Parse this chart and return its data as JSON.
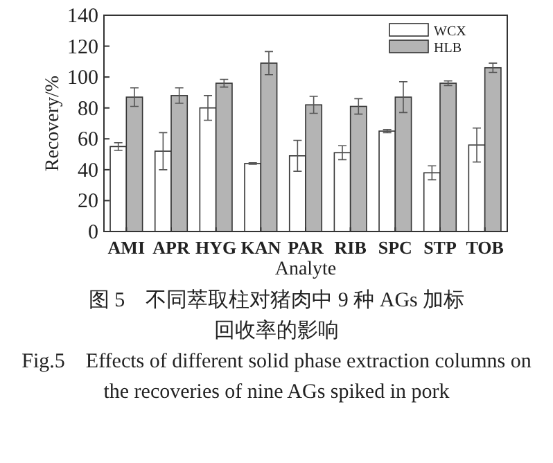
{
  "chart_data": {
    "type": "bar",
    "xlabel": "Analyte",
    "ylabel": "Recovery/%",
    "categories": [
      "AMI",
      "APR",
      "HYG",
      "KAN",
      "PAR",
      "RIB",
      "SPC",
      "STP",
      "TOB"
    ],
    "series": [
      {
        "name": "WCX",
        "color": "#ffffff",
        "values": [
          55,
          52,
          80,
          44,
          49,
          51,
          65,
          38,
          56
        ],
        "errors": [
          2.5,
          12,
          8,
          0.5,
          10,
          4.5,
          1,
          4.5,
          11
        ]
      },
      {
        "name": "HLB",
        "color": "#b4b4b4",
        "values": [
          87,
          88,
          96,
          109,
          82,
          81,
          87,
          96,
          106
        ],
        "errors": [
          6,
          5,
          2.5,
          7.5,
          5.5,
          5,
          10,
          1.5,
          3
        ]
      }
    ],
    "ylim": [
      0,
      140
    ],
    "yticks": [
      0,
      20,
      40,
      60,
      80,
      100,
      120,
      140
    ],
    "legend": "top right",
    "annotations": [
      "图 5　不同萃取柱对猪肉中 9 种 AGs 加标回收率的影响",
      "Fig.5　Effects of different solid phase extraction columns on the recoveries of nine AGs spiked in pork"
    ]
  }
}
